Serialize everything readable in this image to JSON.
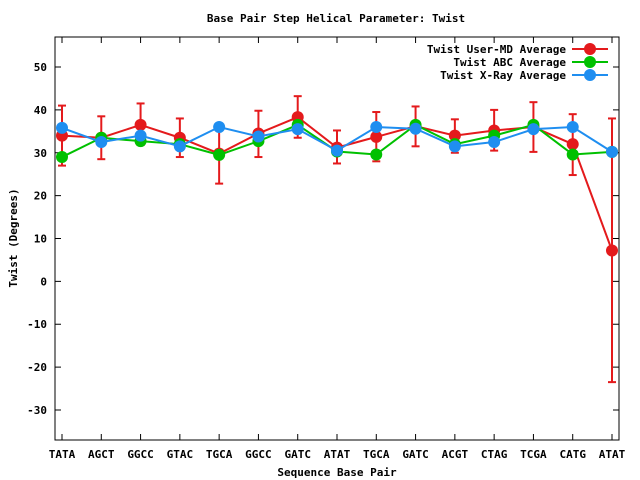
{
  "chart_data": {
    "type": "line",
    "title": "Base Pair Step Helical Parameter: Twist",
    "xlabel": "Sequence Base Pair",
    "ylabel": "Twist (Degrees)",
    "ylim": [
      -37,
      57
    ],
    "yticks": [
      50,
      40,
      30,
      20,
      10,
      0,
      -10,
      -20,
      -30
    ],
    "categories": [
      "TATA",
      "AGCT",
      "GGCC",
      "GTAC",
      "TGCA",
      "GGCC",
      "GATC",
      "ATAT",
      "TGCA",
      "GATC",
      "ACGT",
      "CTAG",
      "TCGA",
      "CATG",
      "ATAT"
    ],
    "legend_position": "top-right",
    "grid": false,
    "series": [
      {
        "name": "Twist User-MD Average",
        "color": "#e41a1c",
        "values": [
          34.0,
          33.5,
          36.5,
          33.5,
          29.8,
          34.5,
          38.3,
          31.2,
          33.7,
          36.2,
          34.0,
          35.2,
          36.0,
          32.0,
          7.2
        ],
        "err_low": [
          27.0,
          28.5,
          31.8,
          29.0,
          22.8,
          29.0,
          33.5,
          27.5,
          28.0,
          31.5,
          30.0,
          30.5,
          30.2,
          24.8,
          -23.5
        ],
        "err_high": [
          41.0,
          38.5,
          41.5,
          38.0,
          36.0,
          39.8,
          43.2,
          35.2,
          39.5,
          40.8,
          37.8,
          40.0,
          41.8,
          39.0,
          38.0
        ]
      },
      {
        "name": "Twist ABC Average",
        "color": "#00c000",
        "values": [
          29.0,
          33.5,
          32.7,
          32.0,
          29.5,
          32.7,
          36.5,
          30.3,
          29.6,
          36.5,
          32.0,
          34.0,
          36.5,
          29.6,
          30.2
        ]
      },
      {
        "name": "Twist X-Ray Average",
        "color": "#1f8ef0",
        "values": [
          35.8,
          32.5,
          34.0,
          31.5,
          36.0,
          33.8,
          35.5,
          30.5,
          36.0,
          35.6,
          31.5,
          32.5,
          35.5,
          36.0,
          30.2
        ]
      }
    ]
  }
}
